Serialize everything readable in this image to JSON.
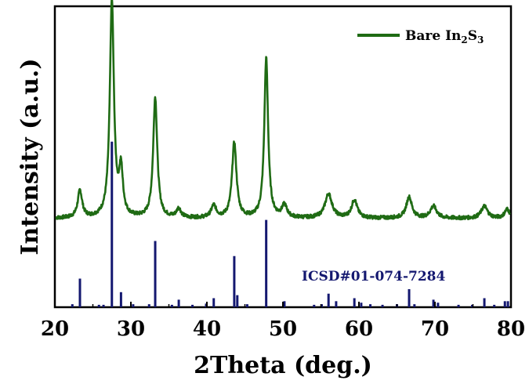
{
  "chart_data": {
    "type": "line",
    "title": "",
    "xlabel": "2Theta (deg.)",
    "ylabel": "Intensity (a.u.)",
    "xlim": [
      20,
      80
    ],
    "ylim": [
      0,
      1
    ],
    "x_ticks": [
      "20",
      "30",
      "40",
      "50",
      "60",
      "70",
      "80"
    ],
    "grid": false,
    "legend": {
      "position": "top-right",
      "entries": [
        {
          "name_parts": [
            {
              "text": "Bare In",
              "sub": false
            },
            {
              "text": "2",
              "sub": true
            },
            {
              "text": "S",
              "sub": false
            },
            {
              "text": "3",
              "sub": true
            }
          ],
          "color": "#1f6b14"
        }
      ]
    },
    "series": [
      {
        "name": "Bare In2S3",
        "kind": "xrd-profile",
        "color": "#1f6b14",
        "baseline": 0.295,
        "peaks": [
          {
            "x": 23.3,
            "height": 0.09,
            "width": 0.35
          },
          {
            "x": 27.5,
            "height": 0.72,
            "width": 0.32
          },
          {
            "x": 28.7,
            "height": 0.15,
            "width": 0.3
          },
          {
            "x": 33.2,
            "height": 0.4,
            "width": 0.32
          },
          {
            "x": 36.3,
            "height": 0.03,
            "width": 0.35
          },
          {
            "x": 40.9,
            "height": 0.04,
            "width": 0.4
          },
          {
            "x": 43.6,
            "height": 0.25,
            "width": 0.35
          },
          {
            "x": 47.8,
            "height": 0.53,
            "width": 0.3
          },
          {
            "x": 50.2,
            "height": 0.04,
            "width": 0.4
          },
          {
            "x": 56.0,
            "height": 0.08,
            "width": 0.55
          },
          {
            "x": 59.4,
            "height": 0.06,
            "width": 0.45
          },
          {
            "x": 66.6,
            "height": 0.07,
            "width": 0.45
          },
          {
            "x": 69.8,
            "height": 0.04,
            "width": 0.5
          },
          {
            "x": 76.5,
            "height": 0.04,
            "width": 0.5
          },
          {
            "x": 79.5,
            "height": 0.03,
            "width": 0.4
          }
        ]
      }
    ],
    "reference": {
      "name": "ICSD#01-074-7284",
      "color": "#141870",
      "lines": [
        {
          "x": 22.3,
          "y": 0.01
        },
        {
          "x": 23.3,
          "y": 0.095
        },
        {
          "x": 25.8,
          "y": 0.008
        },
        {
          "x": 26.4,
          "y": 0.008
        },
        {
          "x": 27.5,
          "y": 0.55
        },
        {
          "x": 28.7,
          "y": 0.05
        },
        {
          "x": 30.3,
          "y": 0.01
        },
        {
          "x": 32.4,
          "y": 0.01
        },
        {
          "x": 33.2,
          "y": 0.22
        },
        {
          "x": 35.4,
          "y": 0.008
        },
        {
          "x": 36.3,
          "y": 0.025
        },
        {
          "x": 38.1,
          "y": 0.008
        },
        {
          "x": 39.9,
          "y": 0.012
        },
        {
          "x": 40.9,
          "y": 0.03
        },
        {
          "x": 43.6,
          "y": 0.17
        },
        {
          "x": 44.0,
          "y": 0.04
        },
        {
          "x": 45.3,
          "y": 0.01
        },
        {
          "x": 47.8,
          "y": 0.29
        },
        {
          "x": 50.2,
          "y": 0.02
        },
        {
          "x": 54.1,
          "y": 0.008
        },
        {
          "x": 55.1,
          "y": 0.01
        },
        {
          "x": 56.0,
          "y": 0.045
        },
        {
          "x": 57.0,
          "y": 0.02
        },
        {
          "x": 59.4,
          "y": 0.03
        },
        {
          "x": 60.3,
          "y": 0.015
        },
        {
          "x": 61.5,
          "y": 0.01
        },
        {
          "x": 63.1,
          "y": 0.008
        },
        {
          "x": 65.0,
          "y": 0.01
        },
        {
          "x": 66.6,
          "y": 0.06
        },
        {
          "x": 67.3,
          "y": 0.01
        },
        {
          "x": 69.8,
          "y": 0.025
        },
        {
          "x": 70.4,
          "y": 0.015
        },
        {
          "x": 73.1,
          "y": 0.008
        },
        {
          "x": 74.9,
          "y": 0.008
        },
        {
          "x": 76.5,
          "y": 0.03
        },
        {
          "x": 77.8,
          "y": 0.008
        },
        {
          "x": 79.2,
          "y": 0.02
        },
        {
          "x": 79.6,
          "y": 0.02
        }
      ]
    }
  }
}
